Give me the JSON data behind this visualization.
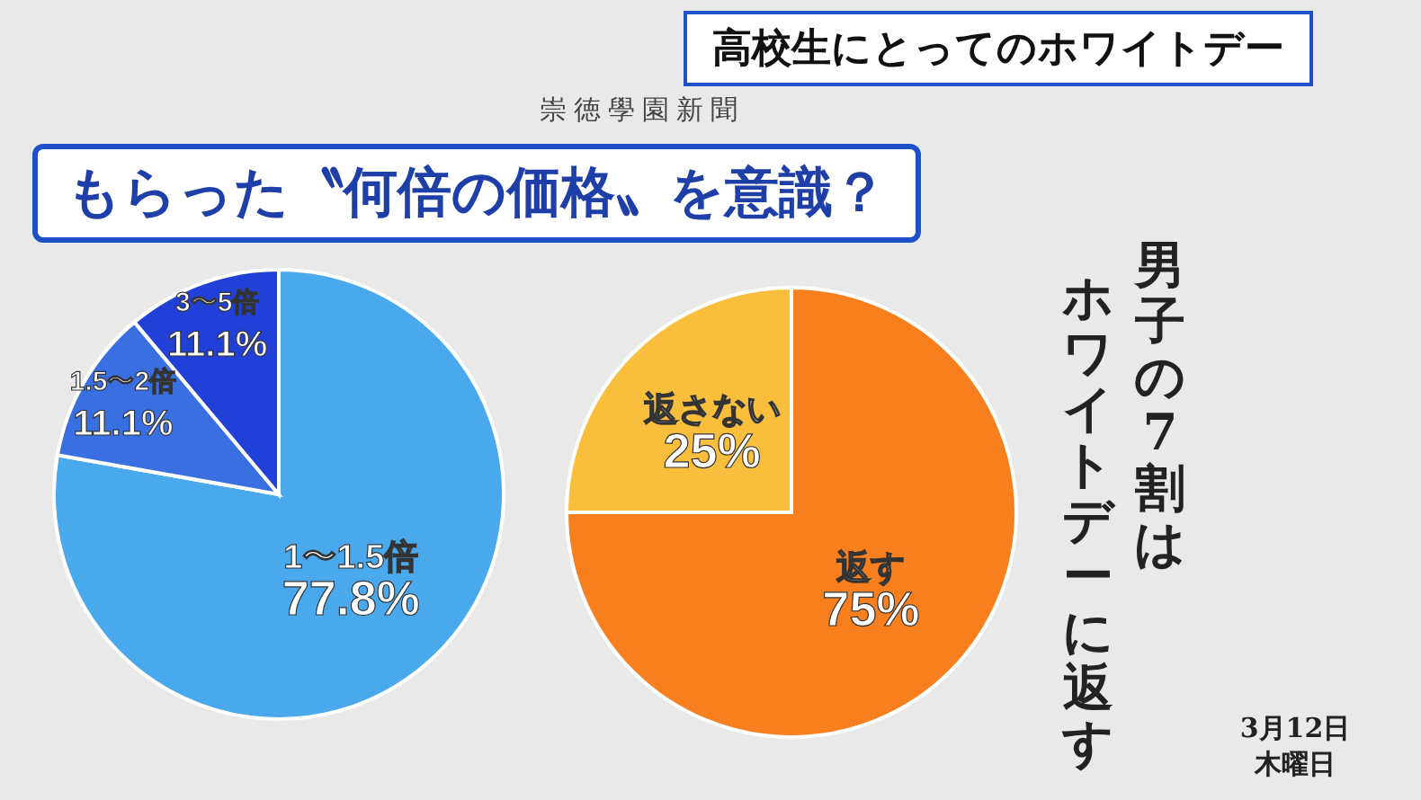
{
  "chart_data": [
    {
      "type": "pie",
      "title": "もらった〝何倍の価格〟を意識？",
      "categories": [
        "1〜1.5倍",
        "1.5〜2倍",
        "3〜5倍"
      ],
      "values": [
        77.8,
        11.1,
        11.1
      ],
      "colors": [
        "#4aa8ec",
        "#3a6fe2",
        "#2040d8"
      ],
      "value_labels": [
        "77.8%",
        "11.1%",
        "11.1%"
      ],
      "annotations": [
        "高校生にとってのホワイトデー",
        "崇徳學園新聞"
      ]
    },
    {
      "type": "pie",
      "categories": [
        "返す",
        "返さない"
      ],
      "values": [
        75,
        25
      ],
      "colors": [
        "#f77f1e",
        "#f9bf3c"
      ],
      "value_labels": [
        "75%",
        "25%"
      ],
      "annotations": [
        "男子の7割は",
        "ホワイトデーに返す",
        "3月12日",
        "木曜日"
      ]
    }
  ]
}
